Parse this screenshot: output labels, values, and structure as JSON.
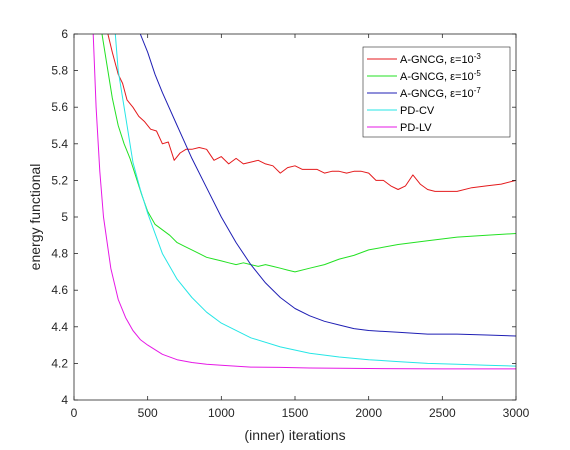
{
  "chart_data": {
    "type": "line",
    "xlabel": "(inner) iterations",
    "ylabel": "energy functional",
    "xlim": [
      0,
      3000
    ],
    "ylim": [
      4,
      6
    ],
    "xticks": [
      0,
      500,
      1000,
      1500,
      2000,
      2500,
      3000
    ],
    "yticks": [
      4,
      4.2,
      4.4,
      4.6,
      4.8,
      5,
      5.2,
      5.4,
      5.6,
      5.8,
      6
    ],
    "xtick_labels": [
      "0",
      "500",
      "1000",
      "1500",
      "2000",
      "2500",
      "3000"
    ],
    "ytick_labels": [
      "4",
      "4.2",
      "4.4",
      "4.6",
      "4.8",
      "5",
      "5.2",
      "5.4",
      "5.6",
      "5.8",
      "6"
    ],
    "grid": false,
    "legend_position": "top-right",
    "series": [
      {
        "name_main": "A-GNCG, ε=10",
        "name_sup": "-3",
        "color": "#e41a1c",
        "x": [
          230,
          260,
          300,
          330,
          360,
          400,
          440,
          480,
          520,
          560,
          600,
          640,
          680,
          720,
          760,
          800,
          850,
          900,
          950,
          1000,
          1050,
          1100,
          1150,
          1200,
          1250,
          1300,
          1350,
          1400,
          1450,
          1500,
          1550,
          1600,
          1650,
          1700,
          1750,
          1800,
          1850,
          1900,
          1950,
          2000,
          2050,
          2100,
          2150,
          2200,
          2250,
          2300,
          2350,
          2400,
          2450,
          2500,
          2600,
          2700,
          2800,
          2900,
          3000
        ],
        "y": [
          6.0,
          5.9,
          5.78,
          5.73,
          5.64,
          5.6,
          5.55,
          5.52,
          5.48,
          5.47,
          5.4,
          5.41,
          5.31,
          5.35,
          5.37,
          5.37,
          5.38,
          5.37,
          5.31,
          5.33,
          5.29,
          5.32,
          5.29,
          5.3,
          5.31,
          5.29,
          5.28,
          5.24,
          5.27,
          5.28,
          5.26,
          5.26,
          5.26,
          5.24,
          5.25,
          5.25,
          5.24,
          5.25,
          5.25,
          5.24,
          5.2,
          5.2,
          5.17,
          5.15,
          5.17,
          5.23,
          5.18,
          5.15,
          5.14,
          5.14,
          5.14,
          5.16,
          5.17,
          5.18,
          5.2
        ]
      },
      {
        "name_main": "A-GNCG, ε=10",
        "name_sup": "-5",
        "color": "#23e123",
        "x": [
          190,
          220,
          260,
          300,
          340,
          380,
          420,
          460,
          500,
          550,
          600,
          650,
          700,
          750,
          800,
          850,
          900,
          950,
          1000,
          1050,
          1100,
          1150,
          1200,
          1250,
          1300,
          1350,
          1400,
          1450,
          1500,
          1600,
          1700,
          1800,
          1900,
          2000,
          2200,
          2400,
          2600,
          2800,
          3000
        ],
        "y": [
          6.0,
          5.85,
          5.65,
          5.5,
          5.4,
          5.32,
          5.22,
          5.12,
          5.03,
          4.96,
          4.93,
          4.9,
          4.86,
          4.84,
          4.82,
          4.8,
          4.78,
          4.77,
          4.76,
          4.75,
          4.74,
          4.75,
          4.74,
          4.73,
          4.74,
          4.73,
          4.72,
          4.71,
          4.7,
          4.72,
          4.74,
          4.77,
          4.79,
          4.82,
          4.85,
          4.87,
          4.89,
          4.9,
          4.91
        ]
      },
      {
        "name_main": "A-GNCG, ε=10",
        "name_sup": "-7",
        "color": "#1f1fb4",
        "x": [
          450,
          500,
          550,
          600,
          700,
          800,
          900,
          1000,
          1100,
          1200,
          1300,
          1400,
          1500,
          1600,
          1700,
          1800,
          1900,
          2000,
          2200,
          2400,
          2600,
          2800,
          3000
        ],
        "y": [
          6.0,
          5.9,
          5.78,
          5.68,
          5.5,
          5.32,
          5.16,
          5.0,
          4.86,
          4.74,
          4.64,
          4.56,
          4.5,
          4.46,
          4.43,
          4.41,
          4.39,
          4.38,
          4.37,
          4.36,
          4.36,
          4.355,
          4.35
        ]
      },
      {
        "name_main": "PD-CV",
        "name_sup": "",
        "color": "#26e6e6",
        "x": [
          280,
          300,
          350,
          400,
          450,
          500,
          600,
          700,
          800,
          900,
          1000,
          1200,
          1400,
          1600,
          1800,
          2000,
          2200,
          2400,
          2600,
          2800,
          3000
        ],
        "y": [
          6.0,
          5.8,
          5.55,
          5.3,
          5.15,
          5.02,
          4.8,
          4.66,
          4.56,
          4.48,
          4.42,
          4.34,
          4.29,
          4.255,
          4.235,
          4.22,
          4.21,
          4.2,
          4.195,
          4.19,
          4.185
        ]
      },
      {
        "name_main": "PD-LV",
        "name_sup": "",
        "color": "#e619e6",
        "x": [
          130,
          150,
          175,
          200,
          250,
          300,
          350,
          400,
          450,
          500,
          600,
          700,
          800,
          900,
          1000,
          1200,
          1400,
          1600,
          1800,
          2000,
          2500,
          3000
        ],
        "y": [
          6.0,
          5.6,
          5.25,
          5.0,
          4.72,
          4.55,
          4.45,
          4.38,
          4.33,
          4.3,
          4.25,
          4.22,
          4.205,
          4.195,
          4.19,
          4.18,
          4.178,
          4.175,
          4.173,
          4.172,
          4.17,
          4.17
        ]
      }
    ]
  }
}
